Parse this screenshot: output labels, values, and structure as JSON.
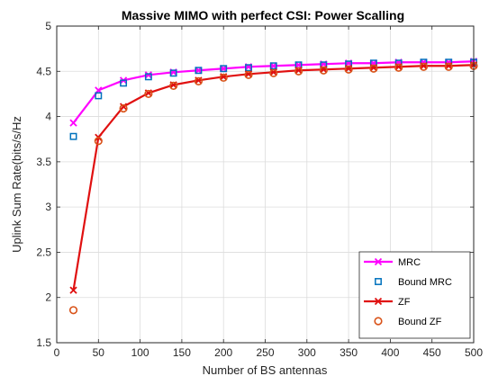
{
  "chart_data": {
    "type": "line",
    "title": "Massive MIMO with perfect CSI: Power Scalling",
    "xlabel": "Number of BS antennas",
    "ylabel": "Uplink Sum Rate(bits/s/Hz",
    "xlim": [
      0,
      500
    ],
    "ylim": [
      1.5,
      5
    ],
    "xticks": [
      0,
      50,
      100,
      150,
      200,
      250,
      300,
      350,
      400,
      450,
      500
    ],
    "yticks": [
      1.5,
      2,
      2.5,
      3,
      3.5,
      4,
      4.5,
      5
    ],
    "xtick_labels": [
      "0",
      "50",
      "100",
      "150",
      "200",
      "250",
      "300",
      "350",
      "400",
      "450",
      "500"
    ],
    "ytick_labels": [
      "1.5",
      "2",
      "2.5",
      "3",
      "3.5",
      "4",
      "4.5",
      "5"
    ],
    "grid": true,
    "legend_position": "bottom-right",
    "x": [
      20,
      50,
      80,
      110,
      140,
      170,
      200,
      230,
      260,
      290,
      320,
      350,
      380,
      410,
      440,
      470,
      500
    ],
    "series": [
      {
        "name": "MRC",
        "style": "line-x",
        "color": "#ff00ff",
        "values": [
          3.93,
          4.29,
          4.4,
          4.46,
          4.49,
          4.51,
          4.53,
          4.55,
          4.56,
          4.57,
          4.58,
          4.59,
          4.59,
          4.6,
          4.6,
          4.6,
          4.61
        ]
      },
      {
        "name": "Bound MRC",
        "style": "square",
        "color": "#0072bd",
        "values": [
          3.78,
          4.23,
          4.37,
          4.44,
          4.48,
          4.51,
          4.53,
          4.54,
          4.56,
          4.57,
          4.57,
          4.58,
          4.59,
          4.59,
          4.6,
          4.6,
          4.6
        ]
      },
      {
        "name": "ZF",
        "style": "line-x",
        "color": "#e01010",
        "values": [
          2.08,
          3.77,
          4.11,
          4.26,
          4.35,
          4.4,
          4.44,
          4.47,
          4.49,
          4.51,
          4.52,
          4.53,
          4.54,
          4.55,
          4.56,
          4.56,
          4.57
        ]
      },
      {
        "name": "Bound ZF",
        "style": "circle",
        "color": "#d95319",
        "values": [
          1.86,
          3.73,
          4.09,
          4.25,
          4.34,
          4.39,
          4.43,
          4.46,
          4.48,
          4.5,
          4.51,
          4.52,
          4.53,
          4.54,
          4.55,
          4.55,
          4.56
        ]
      }
    ]
  }
}
